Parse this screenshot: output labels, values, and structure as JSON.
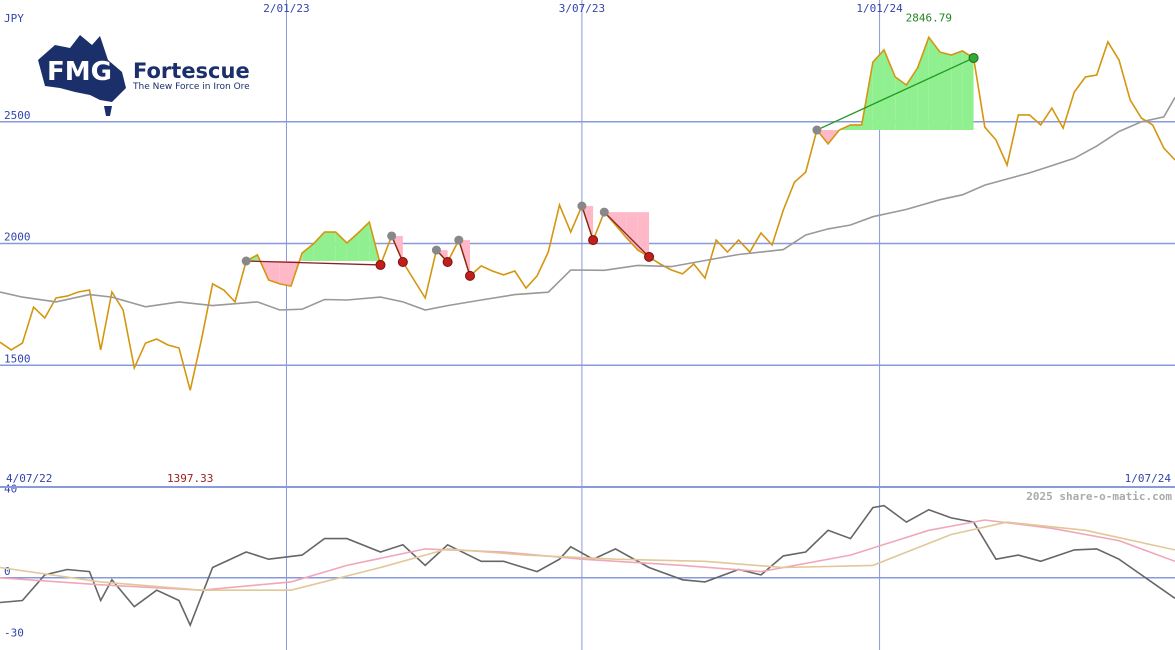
{
  "logo": {
    "mark": "FMG",
    "name": "Fortescue",
    "tagline": "The New Force in Iron Ore"
  },
  "watermark": "2025 share-o-matic.com",
  "chart_data": [
    {
      "type": "line",
      "unit": "JPY",
      "xlim": [
        0,
        105
      ],
      "xticks": [
        {
          "value": 25.6,
          "label": "2/01/23"
        },
        {
          "value": 52,
          "label": "3/07/23"
        },
        {
          "value": 78.6,
          "label": "1/01/24"
        }
      ],
      "edge_labels": [
        {
          "value": 0,
          "label": "4/07/22"
        },
        {
          "value": 105,
          "label": "1/07/24"
        }
      ],
      "ylim": [
        1000,
        3000
      ],
      "yticks": [
        1500,
        2000,
        2500
      ],
      "grid": true,
      "series": [
        {
          "color": "#d4960f",
          "x": [
            0,
            1,
            2,
            3,
            4,
            5,
            6,
            7,
            8,
            9,
            10,
            11,
            12,
            13,
            14,
            15,
            16,
            17,
            18,
            19,
            20,
            21,
            22,
            23,
            24,
            25,
            26,
            27,
            28,
            29,
            30,
            31,
            32,
            33,
            34,
            35,
            36,
            37,
            38,
            39,
            40,
            41,
            42,
            43,
            44,
            45,
            46,
            47,
            48,
            49,
            50,
            51,
            52,
            53,
            54,
            55,
            56,
            57,
            58,
            59,
            60,
            61,
            62,
            63,
            64,
            65,
            66,
            67,
            68,
            69,
            70,
            71,
            72,
            73,
            74,
            75,
            76,
            77,
            78,
            79,
            80,
            81,
            82,
            83,
            84,
            85,
            86,
            87,
            88,
            89,
            90,
            91,
            92,
            93,
            94,
            95,
            96,
            97,
            98,
            99,
            100,
            101,
            102,
            103,
            104,
            105
          ],
          "values": [
            1595,
            1563,
            1591,
            1739,
            1694,
            1776,
            1784,
            1801,
            1809,
            1563,
            1801,
            1727,
            1489,
            1591,
            1608,
            1583,
            1571,
            1397.33,
            1604,
            1834,
            1809,
            1760,
            1928,
            1953,
            1850,
            1834,
            1825,
            1961,
            1998,
            2047,
            2047,
            2002,
            2043,
            2088,
            1912,
            2031,
            1924,
            1850,
            1776,
            1973,
            1924,
            2014,
            1867,
            1908,
            1887,
            1871,
            1887,
            1817,
            1867,
            1965,
            2158,
            2047,
            2154,
            2014,
            2129,
            2076,
            2022,
            1973,
            1945,
            1916,
            1891,
            1875,
            1916,
            1858,
            2014,
            1965,
            2014,
            1965,
            2043,
            1994,
            2137,
            2252,
            2293,
            2466,
            2409,
            2466,
            2487,
            2487,
            2745,
            2795,
            2684,
            2651,
            2721,
            2846.79,
            2786,
            2774,
            2791,
            2762,
            2478,
            2425,
            2322,
            2528,
            2528,
            2487,
            2556,
            2474,
            2622,
            2684,
            2692,
            2828,
            2754,
            2589,
            2515,
            2487,
            2392,
            2343
          ]
        },
        {
          "color": "#999999",
          "x": [
            0,
            2,
            5,
            8,
            10,
            13,
            16,
            19,
            23,
            25,
            27,
            29,
            31,
            34,
            36,
            38,
            40,
            43,
            46,
            49,
            51,
            54,
            57,
            60,
            63,
            66,
            70,
            72,
            74,
            76,
            78,
            81,
            84,
            86,
            88,
            90,
            92,
            94,
            96,
            98,
            100,
            102,
            104,
            105
          ],
          "values": [
            1801,
            1780,
            1760,
            1790,
            1780,
            1740,
            1760,
            1745,
            1760,
            1727,
            1730,
            1770,
            1768,
            1780,
            1760,
            1727,
            1745,
            1768,
            1790,
            1800,
            1891,
            1890,
            1910,
            1905,
            1930,
            1955,
            1975,
            2035,
            2060,
            2076,
            2110,
            2140,
            2180,
            2200,
            2240,
            2265,
            2290,
            2320,
            2350,
            2400,
            2460,
            2500,
            2520,
            2600
          ]
        }
      ],
      "trades": [
        {
          "x": [
            22,
            34
          ]
        },
        {
          "x": [
            35,
            36
          ]
        },
        {
          "x": [
            39,
            40
          ]
        },
        {
          "x": [
            41,
            42
          ]
        },
        {
          "x": [
            52,
            53
          ]
        },
        {
          "x": [
            54,
            58
          ]
        },
        {
          "x": [
            73,
            87
          ]
        }
      ],
      "annotations": [
        {
          "label": "2846.79",
          "x": 83,
          "position": "top",
          "color": "#228822"
        },
        {
          "label": "1397.33",
          "x": 17,
          "position": "bottom",
          "color": "#992222"
        }
      ]
    },
    {
      "type": "line",
      "xlim": [
        0,
        105
      ],
      "ylim": [
        -35,
        44
      ],
      "yticks": [
        40,
        0,
        -30
      ],
      "series": [
        {
          "color": "#666666",
          "x": [
            0,
            2,
            4,
            6,
            8,
            9,
            10,
            12,
            14,
            16,
            17,
            19,
            22,
            24,
            27,
            29,
            31,
            34,
            36,
            38,
            40,
            43,
            45,
            48,
            50,
            51,
            53,
            55,
            58,
            61,
            63,
            66,
            68,
            70,
            72,
            74,
            76,
            78,
            79,
            81,
            83,
            85,
            87,
            89,
            91,
            93,
            96,
            98,
            100,
            102,
            105
          ],
          "values": [
            -12,
            -11,
            1.4,
            4,
            3,
            -11,
            -1,
            -14,
            -6,
            -11,
            -23,
            5,
            12.5,
            9,
            11,
            19,
            19,
            12.5,
            16,
            6,
            16,
            8,
            8,
            3,
            9,
            15,
            9,
            14,
            5,
            -1,
            -2,
            4,
            1.4,
            10.6,
            12.5,
            23,
            19,
            34,
            35,
            27,
            33,
            29,
            27,
            9,
            11,
            8,
            13.5,
            14,
            9,
            1.4,
            -10
          ]
        },
        {
          "color": "#f0a8b8",
          "x": [
            0,
            9,
            18,
            26,
            31,
            38,
            45,
            52,
            61,
            68,
            76,
            83,
            88,
            94,
            100,
            105
          ],
          "values": [
            0,
            -3.4,
            -6,
            -2,
            6,
            14,
            12.5,
            9,
            6,
            3,
            11,
            23,
            28,
            24,
            18,
            8
          ]
        },
        {
          "color": "#e0c898",
          "x": [
            0,
            9,
            18,
            26,
            34,
            40,
            47,
            55,
            63,
            70,
            78,
            85,
            90,
            97,
            105
          ],
          "values": [
            5,
            -2,
            -6,
            -6,
            5,
            14,
            11,
            9,
            8,
            5,
            6,
            21,
            27,
            23,
            13.5
          ]
        }
      ]
    }
  ]
}
